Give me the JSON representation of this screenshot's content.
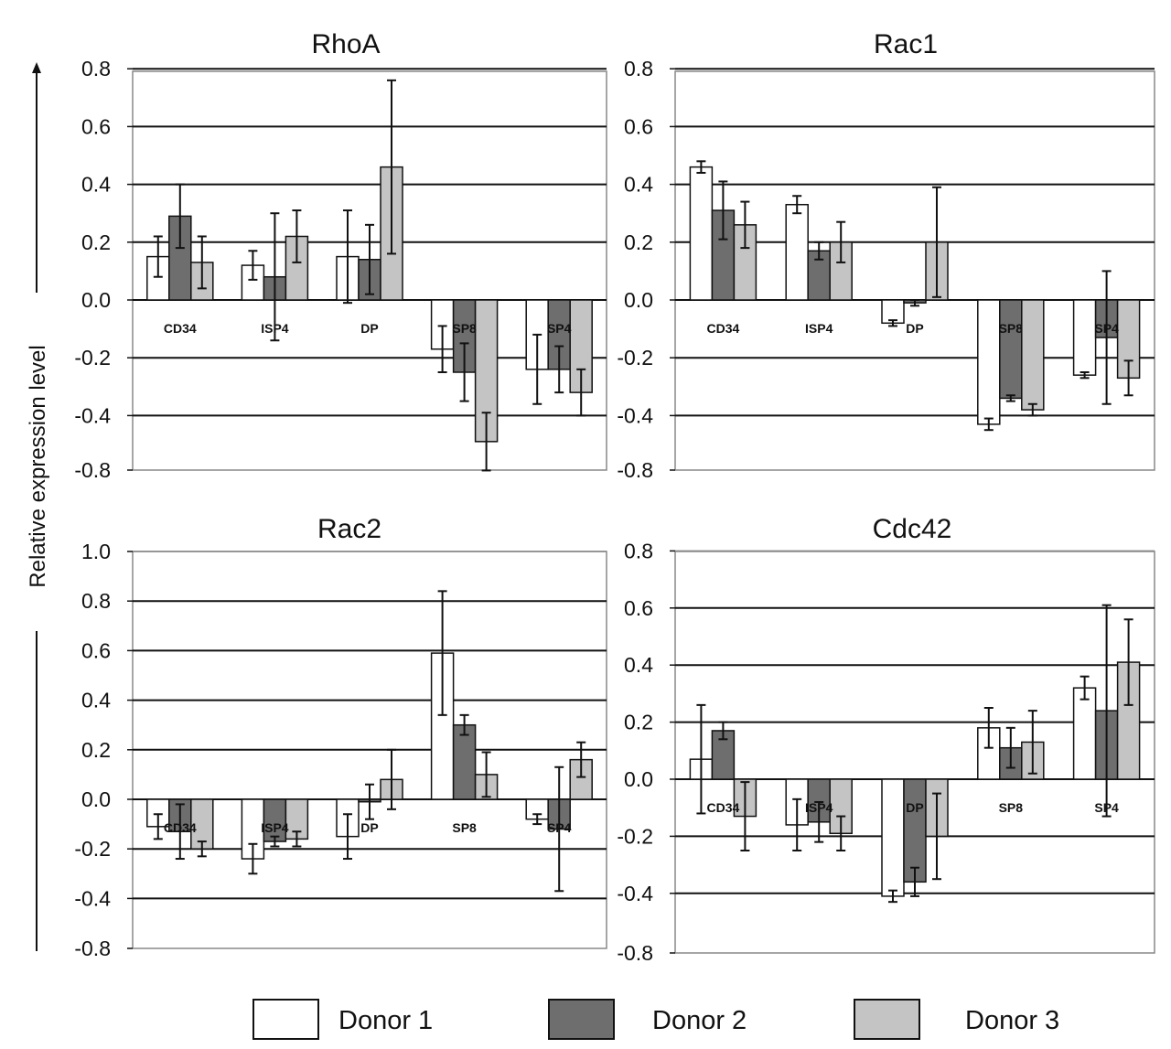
{
  "y_axis_label": "Relative expression level",
  "colors": {
    "donor1": "#ffffff",
    "donor2": "#6e6e6e",
    "donor3": "#c4c4c4"
  },
  "legend": [
    "Donor 1",
    "Donor 2",
    "Donor 3"
  ],
  "chart_data": [
    {
      "type": "bar",
      "title": "RhoA",
      "categories": [
        "CD34",
        "ISP4",
        "DP",
        "SP8",
        "SP4"
      ],
      "yticks": [
        "0.8",
        "0.6",
        "0.4",
        "0.2",
        "0.0",
        "-0.2",
        "-0.4",
        "-0.8"
      ],
      "ylim": [
        -0.6,
        0.8
      ],
      "series": [
        {
          "name": "Donor 1",
          "values": [
            0.15,
            0.12,
            0.15,
            -0.17,
            -0.24
          ],
          "errors": [
            0.07,
            0.05,
            0.16,
            0.08,
            0.12
          ]
        },
        {
          "name": "Donor 2",
          "values": [
            0.29,
            0.08,
            0.14,
            -0.25,
            -0.24
          ],
          "errors": [
            0.11,
            0.22,
            0.12,
            0.1,
            0.08
          ]
        },
        {
          "name": "Donor 3",
          "values": [
            0.13,
            0.22,
            0.46,
            -0.49,
            -0.32
          ],
          "errors": [
            0.09,
            0.09,
            0.3,
            0.1,
            0.08
          ]
        }
      ]
    },
    {
      "type": "bar",
      "title": "Rac1",
      "categories": [
        "CD34",
        "ISP4",
        "DP",
        "SP8",
        "SP4"
      ],
      "yticks": [
        "0.8",
        "0.6",
        "0.4",
        "0.2",
        "0.0",
        "-0.2",
        "-0.4",
        "-0.8"
      ],
      "ylim": [
        -0.6,
        0.8
      ],
      "series": [
        {
          "name": "Donor 1",
          "values": [
            0.46,
            0.33,
            -0.08,
            -0.43,
            -0.26
          ],
          "errors": [
            0.02,
            0.03,
            0.01,
            0.02,
            0.01
          ]
        },
        {
          "name": "Donor 2",
          "values": [
            0.31,
            0.17,
            -0.01,
            -0.34,
            -0.13
          ],
          "errors": [
            0.1,
            0.03,
            0.01,
            0.01,
            0.23
          ]
        },
        {
          "name": "Donor 3",
          "values": [
            0.26,
            0.2,
            0.2,
            -0.38,
            -0.27
          ],
          "errors": [
            0.08,
            0.07,
            0.19,
            0.02,
            0.06
          ]
        }
      ]
    },
    {
      "type": "bar",
      "title": "Rac2",
      "categories": [
        "CD34",
        "ISP4",
        "DP",
        "SP8",
        "SP4"
      ],
      "yticks": [
        "1.0",
        "0.8",
        "0.6",
        "0.4",
        "0.2",
        "0.0",
        "-0.2",
        "-0.4",
        "-0.8"
      ],
      "ylim": [
        -0.6,
        1.0
      ],
      "series": [
        {
          "name": "Donor 1",
          "values": [
            -0.11,
            -0.24,
            -0.15,
            0.59,
            -0.08
          ],
          "errors": [
            0.05,
            0.06,
            0.09,
            0.25,
            0.02
          ]
        },
        {
          "name": "Donor 2",
          "values": [
            -0.13,
            -0.17,
            -0.01,
            0.3,
            -0.12
          ],
          "errors": [
            0.11,
            0.02,
            0.07,
            0.04,
            0.25
          ]
        },
        {
          "name": "Donor 3",
          "values": [
            -0.2,
            -0.16,
            0.08,
            0.1,
            0.16
          ],
          "errors": [
            0.03,
            0.03,
            0.12,
            0.09,
            0.07
          ]
        }
      ]
    },
    {
      "type": "bar",
      "title": "Cdc42",
      "categories": [
        "CD34",
        "ISP4",
        "DP",
        "SP8",
        "SP4"
      ],
      "yticks": [
        "0.8",
        "0.6",
        "0.4",
        "0.2",
        "0.0",
        "-0.2",
        "-0.4",
        "-0.8"
      ],
      "ylim": [
        -0.6,
        0.8
      ],
      "series": [
        {
          "name": "Donor 1",
          "values": [
            0.07,
            -0.16,
            -0.41,
            0.18,
            0.32
          ],
          "errors": [
            0.19,
            0.09,
            0.02,
            0.07,
            0.04
          ]
        },
        {
          "name": "Donor 2",
          "values": [
            0.17,
            -0.15,
            -0.36,
            0.11,
            0.24
          ],
          "errors": [
            0.03,
            0.07,
            0.05,
            0.07,
            0.37
          ]
        },
        {
          "name": "Donor 3",
          "values": [
            -0.13,
            -0.19,
            -0.2,
            0.13,
            0.41
          ],
          "errors": [
            0.12,
            0.06,
            0.15,
            0.11,
            0.15
          ]
        }
      ]
    }
  ]
}
